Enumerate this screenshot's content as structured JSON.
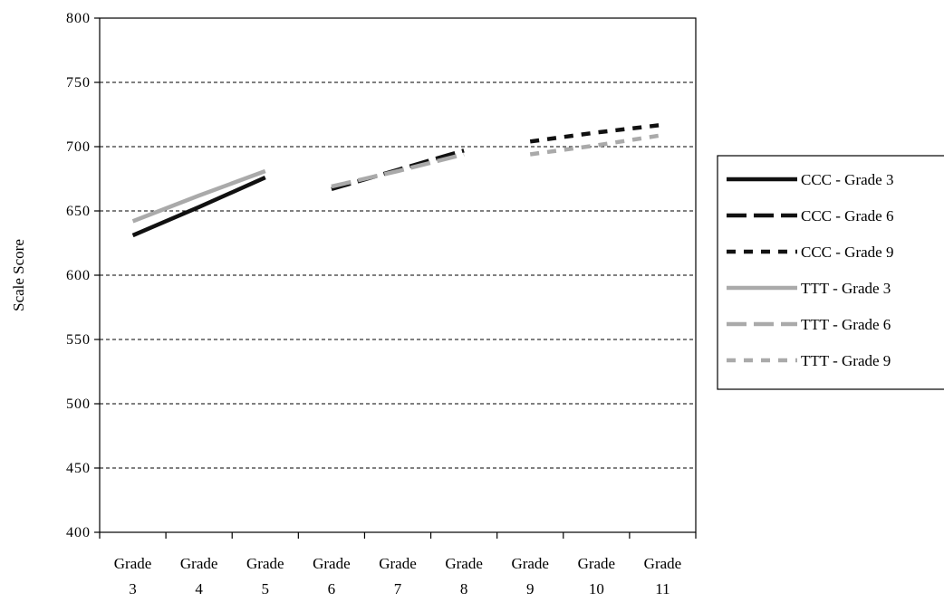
{
  "chart_data": {
    "type": "line",
    "title": "",
    "xlabel": "",
    "ylabel": "Scale Score",
    "ylim": [
      400,
      800
    ],
    "yticks": [
      400,
      450,
      500,
      550,
      600,
      650,
      700,
      750,
      800
    ],
    "grid": "horizontal-dashed",
    "legend_position": "right",
    "categories": [
      [
        "Grade",
        "3"
      ],
      [
        "Grade",
        "4"
      ],
      [
        "Grade",
        "5"
      ],
      [
        "Grade",
        "6"
      ],
      [
        "Grade",
        "7"
      ],
      [
        "Grade",
        "8"
      ],
      [
        "Grade",
        "9"
      ],
      [
        "Grade",
        "10"
      ],
      [
        "Grade",
        "11"
      ]
    ],
    "series": [
      {
        "name": "CCC - Grade 3",
        "color": "#111111",
        "dash": "solid",
        "points": [
          [
            "Grade 3",
            631
          ],
          [
            "Grade 4",
            653
          ],
          [
            "Grade 5",
            676
          ]
        ]
      },
      {
        "name": "CCC - Grade 6",
        "color": "#111111",
        "dash": "long-dash",
        "points": [
          [
            "Grade 6",
            667
          ],
          [
            "Grade 7",
            682
          ],
          [
            "Grade 8",
            697
          ]
        ]
      },
      {
        "name": "CCC - Grade 9",
        "color": "#111111",
        "dash": "short-dash",
        "points": [
          [
            "Grade 9",
            704
          ],
          [
            "Grade 10",
            711
          ],
          [
            "Grade 11",
            717
          ]
        ]
      },
      {
        "name": "TTT - Grade 3",
        "color": "#aaaaaa",
        "dash": "solid",
        "points": [
          [
            "Grade 3",
            642
          ],
          [
            "Grade 4",
            662
          ],
          [
            "Grade 5",
            681
          ]
        ]
      },
      {
        "name": "TTT - Grade 6",
        "color": "#aaaaaa",
        "dash": "long-dash",
        "points": [
          [
            "Grade 6",
            669
          ],
          [
            "Grade 7",
            681
          ],
          [
            "Grade 8",
            694
          ]
        ]
      },
      {
        "name": "TTT - Grade 9",
        "color": "#aaaaaa",
        "dash": "short-dash",
        "points": [
          [
            "Grade 9",
            694
          ],
          [
            "Grade 10",
            701
          ],
          [
            "Grade 11",
            709
          ]
        ]
      }
    ]
  }
}
